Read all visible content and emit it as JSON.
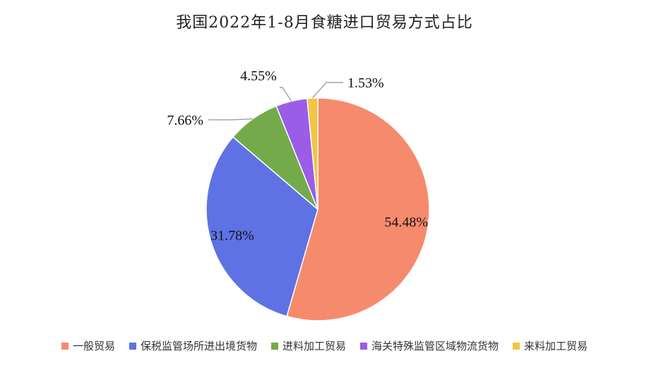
{
  "chart_data": {
    "type": "pie",
    "title": "我国2022年1-8月食糖进口贸易方式占比",
    "categories": [
      "一般贸易",
      "保税监管场所进出境货物",
      "进料加工贸易",
      "海关特殊监管区域物流货物",
      "来料加工贸易"
    ],
    "values": [
      54.48,
      31.78,
      7.66,
      4.55,
      1.53
    ],
    "labels": [
      "54.48%",
      "31.78%",
      "7.66%",
      "4.55%",
      "1.53%"
    ],
    "colors": [
      "#F58B6C",
      "#5E72E4",
      "#73AB4A",
      "#9B5CE8",
      "#F4C542"
    ],
    "legend_position": "bottom"
  }
}
